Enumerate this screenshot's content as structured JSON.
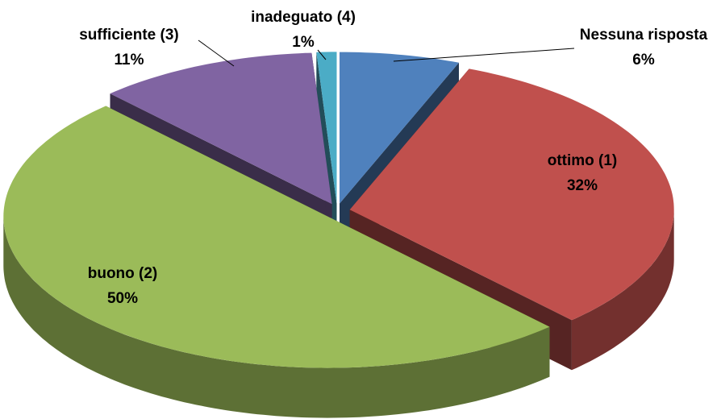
{
  "chart_data": {
    "type": "pie",
    "categories": [
      "Nessuna risposta",
      "ottimo (1)",
      "buono (2)",
      "sufficiente (3)",
      "inadeguato (4)"
    ],
    "values": [
      6,
      32,
      50,
      11,
      1
    ],
    "value_labels": [
      "6%",
      "32%",
      "50%",
      "11%",
      "1%"
    ],
    "colors": [
      "#4f81bd",
      "#c0504d",
      "#9bbb59",
      "#8064a2",
      "#4bacc6"
    ],
    "three_d": true,
    "exploded": true
  }
}
